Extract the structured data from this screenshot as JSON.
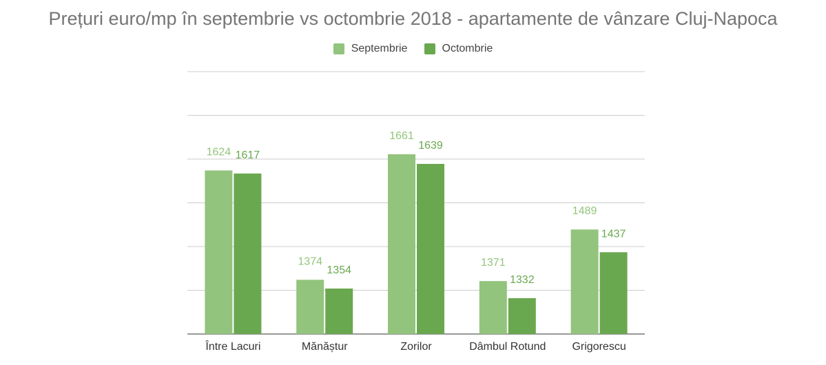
{
  "chart_data": {
    "type": "bar",
    "title": "Prețuri euro/mp în septembrie vs octombrie 2018 - apartamente de vânzare Cluj-Napoca",
    "categories": [
      "Între Lacuri",
      "Mănăștur",
      "Zorilor",
      "Dâmbul Rotund",
      "Grigorescu"
    ],
    "series": [
      {
        "name": "Septembrie",
        "values": [
          1624,
          1374,
          1661,
          1371,
          1489
        ],
        "color": "#93c47d"
      },
      {
        "name": "Octombrie",
        "values": [
          1617,
          1354,
          1639,
          1332,
          1437
        ],
        "color": "#6aa84f"
      }
    ],
    "data_labels": true,
    "ylim": [
      1250,
      1850
    ],
    "grid": true,
    "legend": "top",
    "xlabel": "",
    "ylabel": ""
  }
}
